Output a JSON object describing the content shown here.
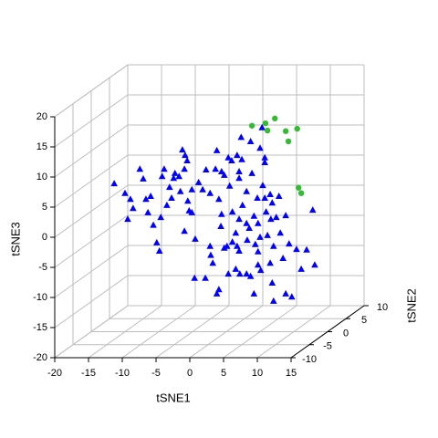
{
  "chart_data": {
    "type": "scatter3d",
    "xlabel": "tSNE1",
    "ylabel": "tSNE2",
    "zlabel": "tSNE3",
    "xlim": [
      -20,
      15
    ],
    "xticks": [
      -20,
      -15,
      -10,
      -5,
      0,
      5,
      10,
      15
    ],
    "ylim": [
      -10,
      10
    ],
    "yticks": [
      -10,
      -5,
      0,
      5,
      10
    ],
    "zlim": [
      -20,
      20
    ],
    "zticks": [
      -20,
      -15,
      -10,
      -5,
      0,
      5,
      10,
      15,
      20
    ],
    "grid": true,
    "series": [
      {
        "color": "#0000ff",
        "marker": "triangle",
        "x": [
          -16.6,
          -15.0,
          -14.6,
          -12.8,
          -12.3,
          -14.2,
          -13.8,
          -11.9,
          -11.2,
          -11.6,
          -10.8,
          -9.7,
          -10.3,
          -9.9,
          -8.8,
          -9.2,
          -8.4,
          -8.1,
          -7.8,
          -7.6,
          -7.0,
          -6.5,
          -6.1,
          -5.8,
          -6.2,
          -6.8,
          -5.7,
          -5.1,
          -4.6,
          -4.7,
          -5.5,
          -4.1,
          -3.5,
          -3.0,
          -2.4,
          -1.4,
          -1.6,
          -0.7,
          -1.1,
          -0.7,
          -2.4,
          -2.0,
          -0.8,
          -0.3,
          0.3,
          0.8,
          0.5,
          1.6,
          2.3,
          1.9,
          1.9,
          1.4,
          1.6,
          2.4,
          3.0,
          3.0,
          3.1,
          3.8,
          4.1,
          4.6,
          4.3,
          4.7,
          5.7,
          5.4,
          5.7,
          5.9,
          6.1,
          5.7,
          6.6,
          6.5,
          6.8,
          7.4,
          7.0,
          8.0,
          8.4,
          7.8,
          9.3,
          10.4,
          11.1,
          11.9,
          12.8,
          13.1,
          9.7,
          8.8,
          3.6,
          3.0,
          2.0,
          4.1,
          1.4,
          0.3,
          -1.4,
          -1.1,
          0.1,
          0.9,
          -2.3,
          -0.3,
          -3.1,
          5.1,
          4.7,
          7.0,
          0.9,
          5.3,
          3.6,
          2.2,
          5.0,
          6.8,
          6.5,
          4.7,
          5.0,
          3.4,
          8.8,
          -9.5,
          -5.1,
          -6.2,
          1.9,
          1.9
        ],
        "y": [
          0,
          0,
          0,
          0,
          0,
          0,
          0,
          0,
          0,
          0,
          0,
          0,
          0,
          0,
          0,
          0,
          0,
          0,
          0,
          0,
          0,
          0,
          0,
          0,
          0,
          0,
          0,
          0,
          0,
          0,
          0,
          0,
          0,
          0,
          0,
          0,
          0,
          0,
          0,
          0,
          0,
          0,
          0,
          0,
          0,
          0,
          0,
          0,
          0,
          0,
          0,
          0,
          0,
          0,
          0,
          0,
          0,
          0,
          0,
          0,
          0,
          0,
          0,
          0,
          0,
          0,
          0,
          0,
          0,
          0,
          0,
          0,
          0,
          0,
          0,
          0,
          0,
          0,
          0,
          0,
          0,
          0,
          0,
          0,
          0,
          0,
          0,
          0,
          0,
          0,
          0,
          0,
          0,
          0,
          0,
          0,
          0,
          0,
          0,
          0,
          0,
          0,
          0,
          0,
          0,
          0,
          0,
          0,
          0,
          0,
          0,
          0,
          0,
          0,
          0,
          0
        ],
        "z": [
          4.6,
          3.0,
          -1.3,
          7.0,
          5.4,
          2.0,
          0.5,
          2.0,
          2.5,
          -0.2,
          -2.3,
          -1.0,
          -5.2,
          -6.6,
          1.0,
          7.0,
          4.0,
          2.2,
          5.5,
          6.3,
          5.8,
          10.2,
          9.3,
          8.4,
          7.0,
          3.3,
          1.7,
          -0.2,
          -4.6,
          -11.1,
          0.1,
          4.8,
          3.6,
          6.9,
          3.0,
          10.1,
          7.0,
          6.6,
          2.0,
          -0.5,
          -5.8,
          -8.6,
          -2.5,
          6.0,
          8.9,
          8.4,
          4.2,
          9.3,
          8.6,
          6.6,
          -1.3,
          -3.6,
          -5.8,
          1.0,
          3.3,
          -2.0,
          -4.8,
          6.3,
          -0.8,
          2.2,
          -5.5,
          -6.7,
          8.9,
          4.3,
          2.2,
          -0.1,
          -4.0,
          8.1,
          -1.3,
          -8.6,
          -11.9,
          -1.0,
          -5.8,
          -3.6,
          -7.8,
          2.5,
          -5.4,
          -6.3,
          -9.6,
          -6.4,
          0.2,
          -8.9,
          -14.2,
          -13.7,
          -10.8,
          -10.4,
          -10.4,
          -13.7,
          -9.6,
          -10.4,
          -13.7,
          -13.0,
          -5.8,
          -5.1,
          -7.3,
          -6.1,
          -11.1,
          -9.8,
          -8.9,
          -14.9,
          -0.1,
          13.9,
          11.6,
          12.3,
          10.5,
          1.4,
          2.8,
          -2.0,
          -4.3,
          -2.8,
          -0.7,
          5.8,
          3.6,
          -3.3,
          -6.6,
          5.5
        ]
      },
      {
        "color": "#33bb33",
        "marker": "circle",
        "x": [
          3.8,
          5.8,
          7.2,
          6.1,
          8.8,
          10.5,
          9.2,
          10.7,
          11.1
        ],
        "y": [
          0,
          0,
          0,
          0,
          0,
          0,
          0,
          0,
          0
        ],
        "z": [
          14.2,
          14.6,
          15.4,
          13.4,
          13.3,
          13.7,
          11.6,
          3.9,
          3.0
        ]
      }
    ]
  }
}
